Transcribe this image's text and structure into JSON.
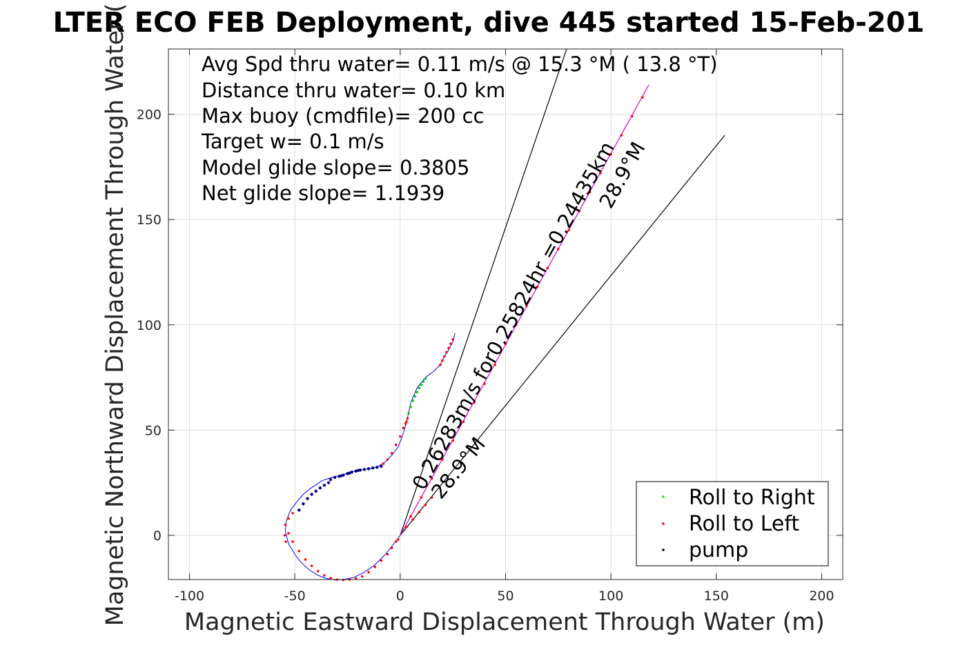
{
  "chart_data": {
    "type": "scatter",
    "title": "LTER ECO FEB Deployment, dive 445 started 15-Feb-201",
    "xlabel": "Magnetic Eastward Displacement Through Water (m)",
    "ylabel": "Magnetic Northward Displacement Through Water (",
    "xlim": [
      -110,
      210
    ],
    "ylim": [
      -21,
      231
    ],
    "xticks": [
      -100,
      -50,
      0,
      50,
      100,
      150,
      200
    ],
    "yticks": [
      0,
      50,
      100,
      150,
      200
    ],
    "grid": true,
    "info_lines": [
      "Avg Spd thru water=  0.11 m/s @  15.3 °M ( 13.8 °T)",
      "Distance thru water=  0.10 km",
      "Max buoy (cmdfile)= 200 cc",
      "Target w= 0.1 m/s",
      "Model glide slope= 0.3805",
      "Net glide slope= 1.1939"
    ],
    "annotations": {
      "long_line_label": "0.26283m/s for0.25824hr =0.24435km",
      "long_line_heading": "28.9°M",
      "short_line_heading": "28.9°M"
    },
    "lines": {
      "heading_line": {
        "color": "#cc00cc",
        "x": [
          0,
          118
        ],
        "y": [
          0,
          214
        ]
      },
      "cone_left": {
        "color": "#000000",
        "x": [
          0,
          79
        ],
        "y": [
          0,
          231
        ]
      },
      "cone_right": {
        "color": "#000000",
        "x": [
          0,
          154
        ],
        "y": [
          0,
          190
        ]
      }
    },
    "track_color": "#0000ff",
    "track": {
      "x": [
        0,
        -3,
        -7,
        -12,
        -17,
        -22,
        -27,
        -31,
        -35,
        -39,
        -43,
        -47,
        -50,
        -53,
        -54.5,
        -54,
        -52,
        -49,
        -46,
        -43,
        -40,
        -37,
        -34,
        -31,
        -28,
        -25,
        -22,
        -19,
        -16,
        -13,
        -10,
        -7,
        -4,
        -1,
        1,
        2.5,
        3.5,
        5,
        8,
        12,
        16,
        19,
        21,
        23,
        25,
        26
      ],
      "y": [
        0,
        -4,
        -9,
        -14,
        -17.5,
        -20,
        -21,
        -21.2,
        -20.5,
        -19,
        -16.5,
        -13,
        -9,
        -4,
        2,
        7,
        12,
        16,
        19.5,
        22,
        24,
        26,
        27,
        28,
        28.5,
        29.5,
        30.5,
        31,
        31.5,
        32,
        33,
        35,
        38,
        42,
        47,
        52,
        56,
        63,
        70,
        75,
        78,
        81,
        85,
        88,
        92,
        96
      ]
    },
    "points": {
      "pump": {
        "color": "#000080",
        "x": [
          -48,
          -46,
          -44,
          -42,
          -40,
          -38,
          -36,
          -34,
          -33,
          -31,
          -29,
          -27,
          -25,
          -23,
          -21,
          -19,
          -17,
          -15,
          -13,
          -11,
          -9,
          -28,
          -24,
          -20
        ],
        "y": [
          12,
          15,
          17.5,
          19.5,
          21,
          22.5,
          23.8,
          25,
          26.5,
          27.5,
          28,
          28.6,
          29.3,
          30,
          30.5,
          31,
          31.3,
          31.6,
          32,
          32.3,
          32.8,
          28.3,
          29.6,
          30.8
        ]
      },
      "roll_right": {
        "color": "#00cc00",
        "x": [
          4,
          5,
          6,
          7,
          8,
          9,
          10,
          11,
          12
        ],
        "y": [
          58,
          61,
          64,
          66,
          68,
          70,
          71.5,
          73,
          74.5
        ]
      },
      "roll_left": {
        "color": "#ff0000",
        "x": [
          -1,
          -2,
          -4,
          -6,
          -9,
          -12,
          -15,
          -18,
          -21,
          -24,
          -27,
          -30,
          -33,
          -36,
          -39,
          -42,
          -45,
          -48,
          -51,
          -53,
          -54.5,
          -54.8,
          -54.3,
          -53,
          -51,
          -8,
          -6,
          -4,
          -2,
          0,
          1.5,
          2.5,
          3,
          3.5,
          19,
          20,
          21,
          22,
          23,
          24,
          25,
          5,
          10,
          15,
          20,
          25,
          30,
          35,
          40,
          45,
          50,
          55,
          60,
          65,
          70,
          75,
          80,
          85,
          90,
          95,
          100,
          105,
          110,
          115,
          3,
          6,
          9,
          12,
          15
        ],
        "y": [
          -2,
          -3,
          -6,
          -9,
          -12,
          -15,
          -17.5,
          -19.5,
          -20.5,
          -21,
          -21.2,
          -21,
          -20.3,
          -19,
          -17,
          -14.5,
          -11.5,
          -7.5,
          -3,
          1,
          5,
          0,
          -3,
          8,
          10.5,
          34,
          36,
          39,
          43,
          47,
          51,
          53,
          54,
          55.5,
          81,
          83,
          85,
          87,
          89,
          91,
          93,
          9,
          18,
          27,
          36,
          45,
          54,
          63,
          72,
          81,
          91,
          100,
          109,
          118,
          127,
          136,
          145,
          154,
          163,
          172,
          181,
          190,
          199,
          208,
          4,
          7.5,
          11,
          14.5,
          18
        ]
      }
    },
    "legend": {
      "position": "bottom-right",
      "entries": [
        {
          "label": "Roll to Right",
          "color": "#00ff00"
        },
        {
          "label": "Roll to Left",
          "color": "#ff0000"
        },
        {
          "label": "pump",
          "color": "#000000"
        }
      ]
    }
  }
}
